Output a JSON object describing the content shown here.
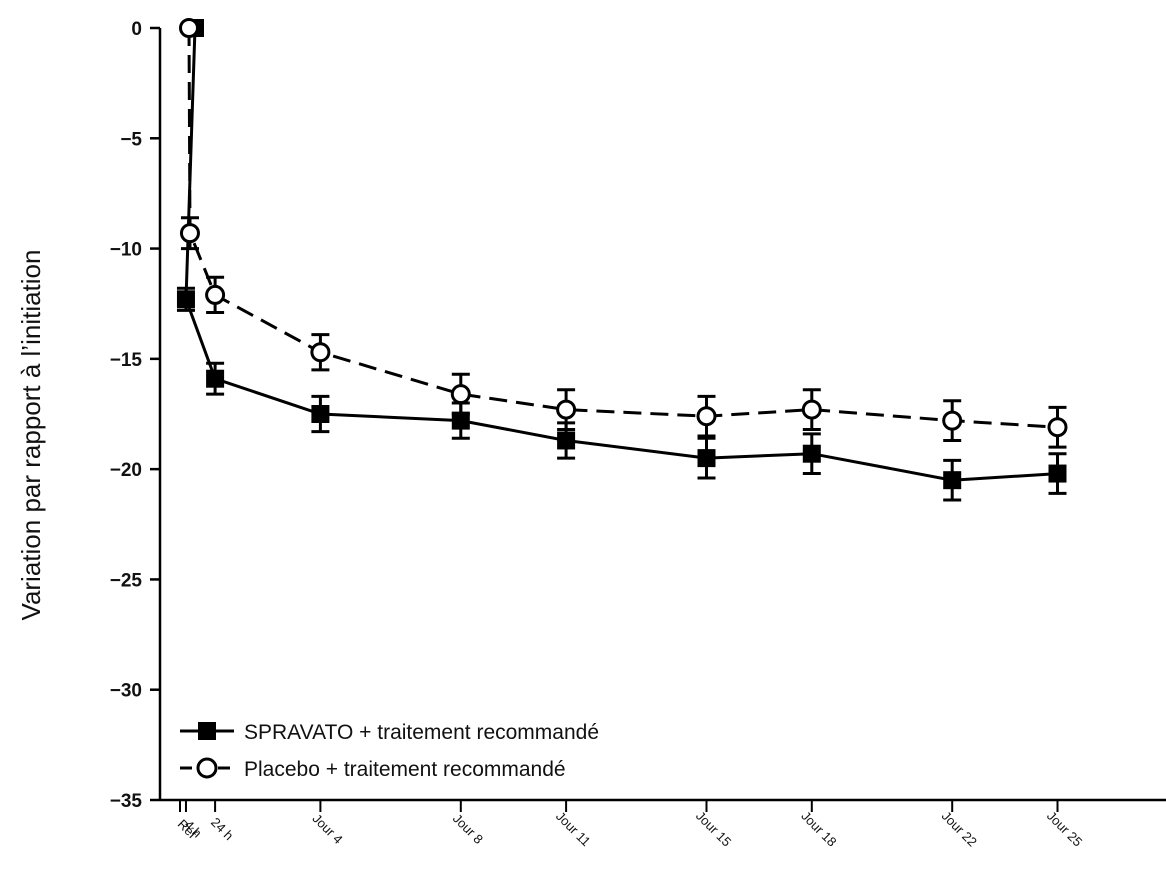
{
  "chart_data": {
    "type": "line",
    "title": "",
    "xlabel": "",
    "ylabel": "Variation par rapport à l’initiation",
    "ylim": [
      -35,
      0
    ],
    "yticks": [
      "0",
      "-5",
      "-10",
      "-15",
      "-20",
      "-25",
      "-30",
      "-35"
    ],
    "categories": [
      "Réf",
      "4 h",
      "24 h",
      "Jour 4",
      "Jour 8",
      "Jour 11",
      "Jour 15",
      "Jour 18",
      "Jour 22",
      "Jour 25"
    ],
    "x_days": [
      0,
      0.17,
      1,
      4,
      8,
      11,
      15,
      18,
      22,
      25
    ],
    "grid": false,
    "legend_position": "bottom-left",
    "series": [
      {
        "name": "SPRAVATO + traitement recommandé",
        "style": "solid",
        "marker": "filled-square",
        "color": "#000000",
        "values": [
          0,
          -12.3,
          -15.9,
          -17.5,
          -17.8,
          -18.7,
          -19.5,
          -19.3,
          -20.5,
          -20.2
        ],
        "error": [
          0,
          0.5,
          0.7,
          0.8,
          0.8,
          0.8,
          0.9,
          0.9,
          0.9,
          0.9
        ]
      },
      {
        "name": "Placebo + traitement recommandé",
        "style": "dashed",
        "marker": "open-circle",
        "color": "#000000",
        "values": [
          0,
          -9.3,
          -12.1,
          -14.7,
          -16.6,
          -17.3,
          -17.6,
          -17.3,
          -17.8,
          -18.1
        ],
        "error": [
          0,
          0.7,
          0.8,
          0.8,
          0.9,
          0.9,
          0.9,
          0.9,
          0.9,
          0.9
        ]
      }
    ]
  }
}
